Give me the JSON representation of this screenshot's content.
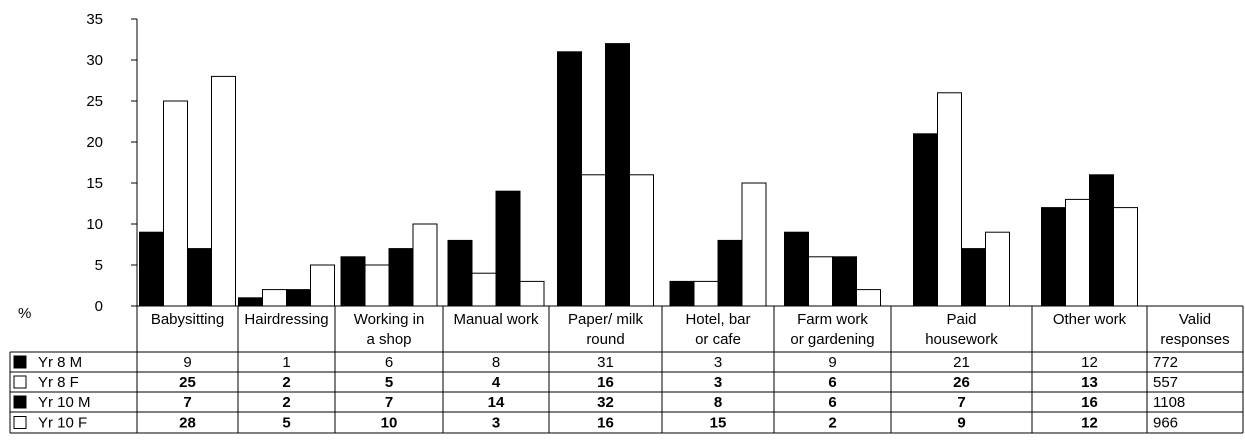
{
  "chart_data": {
    "type": "bar",
    "ylabel": "%",
    "ylim": [
      0,
      35
    ],
    "yticks": [
      0,
      5,
      10,
      15,
      20,
      25,
      30,
      35
    ],
    "grid": false,
    "categories": [
      [
        "Babysitting"
      ],
      [
        "Hairdressing"
      ],
      [
        "Working in",
        "a shop"
      ],
      [
        "Manual work"
      ],
      [
        "Paper/ milk",
        "round"
      ],
      [
        "Hotel, bar",
        "or cafe"
      ],
      [
        "Farm work",
        "or gardening"
      ],
      [
        "Paid",
        "housework"
      ],
      [
        "Other work"
      ]
    ],
    "extra_column_header": [
      "Valid",
      "responses"
    ],
    "series": [
      {
        "name": "Yr 8 M",
        "fill": "#000000",
        "bold": false,
        "values": [
          9,
          1,
          6,
          8,
          31,
          3,
          9,
          21,
          12
        ],
        "valid_responses": "772"
      },
      {
        "name": "Yr 8 F",
        "fill": "#ffffff",
        "bold": true,
        "values": [
          25,
          2,
          5,
          4,
          16,
          3,
          6,
          26,
          13
        ],
        "valid_responses": "557"
      },
      {
        "name": "Yr 10 M",
        "fill": "#000000",
        "bold": true,
        "values": [
          7,
          2,
          7,
          14,
          32,
          8,
          6,
          7,
          16
        ],
        "valid_responses": "1108"
      },
      {
        "name": "Yr 10 F",
        "fill": "#ffffff",
        "bold": true,
        "values": [
          28,
          5,
          10,
          3,
          16,
          15,
          2,
          9,
          12
        ],
        "valid_responses": "966"
      }
    ]
  }
}
